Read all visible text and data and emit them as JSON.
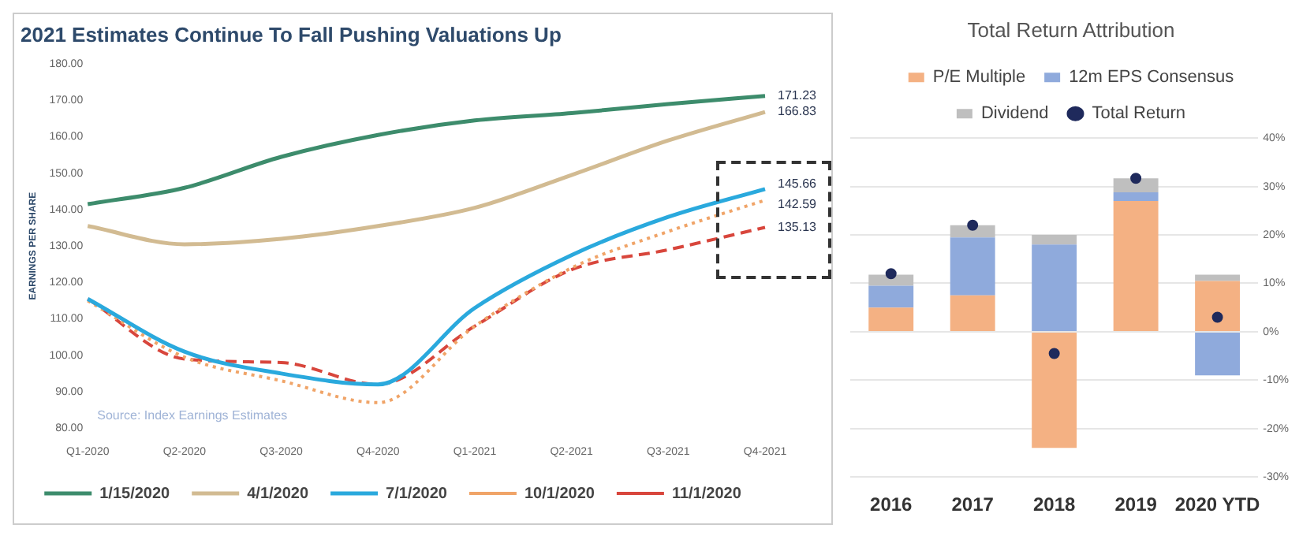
{
  "chart_data": [
    {
      "type": "line",
      "title": "2021 Estimates Continue To Fall Pushing Valuations Up",
      "ylabel": "EARNINGS PER SHARE",
      "categories": [
        "Q1-2020",
        "Q2-2020",
        "Q3-2020",
        "Q4-2020",
        "Q1-2021",
        "Q2-2021",
        "Q3-2021",
        "Q4-2021"
      ],
      "series": [
        {
          "name": "1/15/2020",
          "color": "#3d8c6c",
          "line_style": "solid",
          "values": [
            141.5,
            146,
            154.5,
            160.5,
            164.5,
            166.5,
            169,
            171.23
          ],
          "value_labels": [
            null,
            null,
            null,
            null,
            null,
            null,
            null,
            "171.23"
          ]
        },
        {
          "name": "4/1/2020",
          "color": "#d2bb92",
          "line_style": "solid",
          "values": [
            135.5,
            130.5,
            132,
            135.5,
            140.5,
            149.5,
            159,
            166.83
          ],
          "value_labels": [
            null,
            null,
            null,
            null,
            null,
            null,
            null,
            "166.83"
          ]
        },
        {
          "name": "7/1/2020",
          "color": "#2aa9dd",
          "line_style": "solid",
          "values": [
            115.5,
            101,
            95,
            92,
            113,
            127.5,
            138,
            145.66
          ],
          "value_labels": [
            null,
            null,
            null,
            null,
            null,
            null,
            null,
            "145.66"
          ]
        },
        {
          "name": "10/1/2020",
          "color": "#f0a468",
          "line_style": "dotted",
          "values": [
            115,
            99.5,
            93,
            87,
            108,
            124,
            134,
            142.59
          ],
          "value_labels": [
            null,
            null,
            null,
            null,
            null,
            null,
            null,
            "142.59"
          ]
        },
        {
          "name": "11/1/2020",
          "color": "#d8463c",
          "line_style": "dashed",
          "values": [
            115.5,
            99,
            98,
            92,
            108,
            123.5,
            129,
            135.13
          ],
          "value_labels": [
            null,
            null,
            null,
            null,
            null,
            null,
            null,
            "135.13"
          ]
        }
      ],
      "ylim": [
        80,
        180
      ],
      "yticks": [
        {
          "value": 80,
          "label": "80.00"
        },
        {
          "value": 90,
          "label": "90.00"
        },
        {
          "value": 100,
          "label": "100.00"
        },
        {
          "value": 110,
          "label": "110.00"
        },
        {
          "value": 120,
          "label": "120.00"
        },
        {
          "value": 130,
          "label": "130.00"
        },
        {
          "value": 140,
          "label": "140.00"
        },
        {
          "value": 150,
          "label": "150.00"
        },
        {
          "value": 160,
          "label": "160.00"
        },
        {
          "value": 170,
          "label": "170.00"
        },
        {
          "value": 180,
          "label": "180.00"
        }
      ],
      "marker": "none",
      "legend": "bottom",
      "annotations": [
        "Source: Index Earnings Estimates"
      ]
    },
    {
      "type": "bar",
      "title": "Total Return Attribution",
      "stacked": true,
      "categories": [
        "2016",
        "2017",
        "2018",
        "2019",
        "2020 YTD"
      ],
      "series": [
        {
          "name": "P/E Multiple",
          "color": "#f4b183",
          "values": [
            5,
            7.5,
            -24,
            27,
            10.5
          ]
        },
        {
          "name": "12m EPS Consensus",
          "color": "#8faadc",
          "values": [
            4.5,
            12,
            18,
            1.8,
            -9
          ]
        },
        {
          "name": "Dividend",
          "color": "#bfbfbf",
          "values": [
            2.3,
            2.5,
            2,
            2.9,
            1.3
          ]
        },
        {
          "name": "Total Return",
          "type": "scatter",
          "marker": "circle",
          "color": "#1f2a5c",
          "values": [
            12,
            22,
            -4.5,
            31.7,
            3
          ]
        }
      ],
      "ylim": [
        -30,
        40
      ],
      "yticks": [
        {
          "value": -30,
          "label": "-30%"
        },
        {
          "value": -20,
          "label": "-20%"
        },
        {
          "value": -10,
          "label": "-10%"
        },
        {
          "value": 0,
          "label": "0%"
        },
        {
          "value": 10,
          "label": "10%"
        },
        {
          "value": 20,
          "label": "20%"
        },
        {
          "value": 30,
          "label": "30%"
        },
        {
          "value": 40,
          "label": "40%"
        }
      ],
      "grid": "y",
      "legend": "top"
    }
  ]
}
